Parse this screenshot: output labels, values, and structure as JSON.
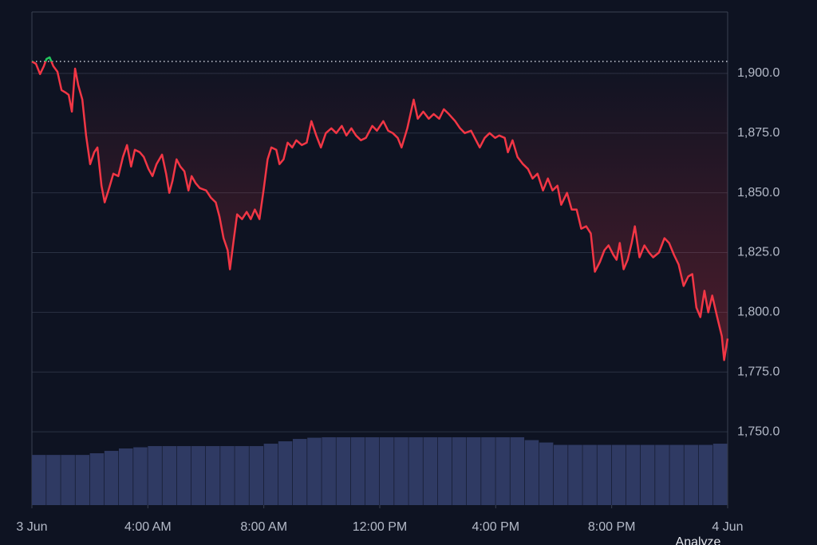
{
  "chart_data": {
    "type": "line",
    "x": [
      0,
      0.14,
      0.28,
      0.41,
      0.5,
      0.61,
      0.74,
      0.88,
      1.02,
      1.16,
      1.27,
      1.38,
      1.49,
      1.6,
      1.74,
      1.87,
      2.01,
      2.15,
      2.26,
      2.4,
      2.51,
      2.64,
      2.81,
      2.98,
      3.14,
      3.28,
      3.42,
      3.55,
      3.72,
      3.86,
      4.02,
      4.16,
      4.3,
      4.49,
      4.63,
      4.74,
      4.85,
      4.99,
      5.12,
      5.26,
      5.4,
      5.51,
      5.65,
      5.79,
      6.01,
      6.17,
      6.34,
      6.47,
      6.61,
      6.75,
      6.83,
      6.97,
      7.08,
      7.25,
      7.41,
      7.55,
      7.69,
      7.85,
      7.99,
      8.13,
      8.26,
      8.43,
      8.54,
      8.68,
      8.82,
      8.98,
      9.12,
      9.31,
      9.48,
      9.64,
      9.81,
      9.97,
      10.14,
      10.33,
      10.5,
      10.69,
      10.85,
      11.02,
      11.18,
      11.35,
      11.52,
      11.74,
      11.9,
      12.12,
      12.29,
      12.45,
      12.62,
      12.75,
      12.95,
      13.17,
      13.31,
      13.5,
      13.69,
      13.86,
      14.05,
      14.21,
      14.38,
      14.6,
      14.77,
      14.93,
      15.15,
      15.32,
      15.45,
      15.62,
      15.79,
      15.98,
      16.12,
      16.31,
      16.42,
      16.58,
      16.75,
      16.94,
      17.11,
      17.27,
      17.44,
      17.63,
      17.8,
      17.96,
      18.13,
      18.26,
      18.46,
      18.62,
      18.79,
      18.95,
      19.12,
      19.28,
      19.42,
      19.59,
      19.75,
      19.89,
      20.06,
      20.17,
      20.28,
      20.41,
      20.55,
      20.69,
      20.8,
      20.96,
      21.13,
      21.29,
      21.43,
      21.63,
      21.82,
      21.98,
      22.15,
      22.31,
      22.48,
      22.64,
      22.78,
      22.92,
      23.06,
      23.2,
      23.33,
      23.47,
      23.64,
      23.8,
      23.88,
      24
    ],
    "series": [
      {
        "color": "#f23645",
        "up_color": "#22c55e",
        "values": [
          1905,
          1904,
          1899.7,
          1903,
          1906,
          1906.7,
          1903,
          1900.7,
          1893,
          1892,
          1891,
          1884,
          1902,
          1895,
          1889,
          1874,
          1862,
          1867,
          1869,
          1853,
          1846,
          1851,
          1858,
          1857,
          1865,
          1870,
          1861,
          1868,
          1867,
          1865,
          1860,
          1857,
          1862,
          1866,
          1858,
          1850,
          1855,
          1864,
          1861,
          1859,
          1851,
          1857,
          1854,
          1852,
          1851,
          1848,
          1846,
          1840,
          1831,
          1826,
          1818,
          1831,
          1841,
          1839,
          1842,
          1839,
          1843,
          1839,
          1851,
          1864,
          1869,
          1868,
          1862,
          1864,
          1871,
          1869,
          1872,
          1870,
          1871,
          1880,
          1874,
          1869,
          1875,
          1877,
          1875,
          1878,
          1874,
          1877,
          1874,
          1872,
          1873,
          1878,
          1876,
          1880,
          1876,
          1875,
          1873,
          1869,
          1877,
          1889,
          1881,
          1884,
          1881,
          1883,
          1881,
          1885,
          1883,
          1880,
          1877,
          1875,
          1876,
          1872,
          1869,
          1873,
          1875,
          1873,
          1874,
          1873,
          1867,
          1872,
          1865,
          1862,
          1860,
          1856,
          1858,
          1851,
          1856,
          1851,
          1853,
          1845,
          1850,
          1843,
          1843,
          1835,
          1836,
          1833,
          1817,
          1821,
          1826,
          1828,
          1824,
          1822,
          1829,
          1818,
          1822,
          1829,
          1836,
          1823,
          1828,
          1825,
          1823,
          1825,
          1831,
          1829,
          1824,
          1820,
          1811,
          1815,
          1816,
          1802,
          1798,
          1809,
          1800,
          1807,
          1798,
          1790,
          1780,
          1789
        ]
      }
    ],
    "baseline": 1905,
    "volume": {
      "color": "#2f3a63",
      "x": [
        0.25,
        0.75,
        1.25,
        1.75,
        2.25,
        2.75,
        3.25,
        3.75,
        4.25,
        4.75,
        5.25,
        5.75,
        6.25,
        6.75,
        7.25,
        7.75,
        8.25,
        8.75,
        9.25,
        9.75,
        10.25,
        10.75,
        11.25,
        11.75,
        12.25,
        12.75,
        13.25,
        13.75,
        14.25,
        14.75,
        15.25,
        15.75,
        16.25,
        16.75,
        17.25,
        17.75,
        18.25,
        18.75,
        19.25,
        19.75,
        20.25,
        20.75,
        21.25,
        21.75,
        22.25,
        22.75,
        23.25,
        23.75
      ],
      "values": [
        1740.3,
        1740.3,
        1740.3,
        1740.3,
        1741,
        1742,
        1743,
        1743.5,
        1744,
        1744,
        1744,
        1744,
        1744,
        1744,
        1744,
        1744,
        1745,
        1746,
        1747,
        1747.5,
        1747.7,
        1747.7,
        1747.7,
        1747.7,
        1747.7,
        1747.7,
        1747.7,
        1747.7,
        1747.7,
        1747.7,
        1747.7,
        1747.7,
        1747.7,
        1747.7,
        1746.5,
        1745.5,
        1744.5,
        1744.5,
        1744.5,
        1744.5,
        1744.5,
        1744.5,
        1744.5,
        1744.5,
        1744.5,
        1744.5,
        1744.5,
        1745
      ]
    },
    "xlim": [
      0,
      24
    ],
    "xticks": [
      {
        "value": 0,
        "label": "3 Jun"
      },
      {
        "value": 4,
        "label": "4:00 AM"
      },
      {
        "value": 8,
        "label": "8:00 AM"
      },
      {
        "value": 12,
        "label": "12:00 PM"
      },
      {
        "value": 16,
        "label": "4:00 PM"
      },
      {
        "value": 20,
        "label": "8:00 PM"
      },
      {
        "value": 24,
        "label": "4 Jun"
      }
    ],
    "ylim": [
      1719.3,
      1925.7
    ],
    "yticks": [
      {
        "value": 1750,
        "label": "1,750.0"
      },
      {
        "value": 1775,
        "label": "1,775.0"
      },
      {
        "value": 1800,
        "label": "1,800.0"
      },
      {
        "value": 1825,
        "label": "1,825.0"
      },
      {
        "value": 1850,
        "label": "1,850.0"
      },
      {
        "value": 1875,
        "label": "1,875.0"
      },
      {
        "value": 1900,
        "label": "1,900.0"
      }
    ],
    "grid": true,
    "button": "Analyze"
  }
}
